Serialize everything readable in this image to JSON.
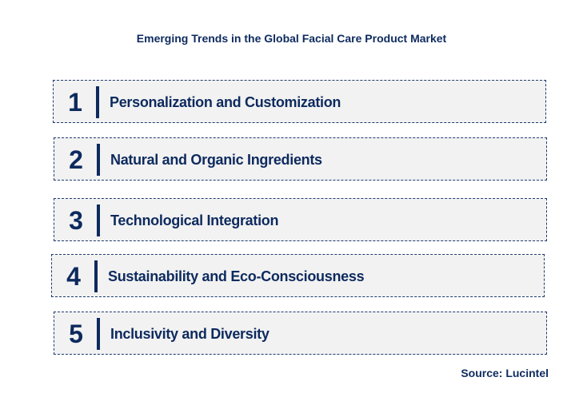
{
  "title": "Emerging Trends in the Global Facial Care Product Market",
  "items": [
    {
      "number": "1",
      "label": "Personalization and Customization"
    },
    {
      "number": "2",
      "label": "Natural and Organic Ingredients"
    },
    {
      "number": "3",
      "label": "Technological Integration"
    },
    {
      "number": "4",
      "label": "Sustainability and Eco-Consciousness"
    },
    {
      "number": "5",
      "label": "Inclusivity and Diversity"
    }
  ],
  "source": "Source: Lucintel",
  "colors": {
    "text": "#0d2a5e",
    "box_fill": "#f2f2f2",
    "border": "#1f3a6e"
  }
}
